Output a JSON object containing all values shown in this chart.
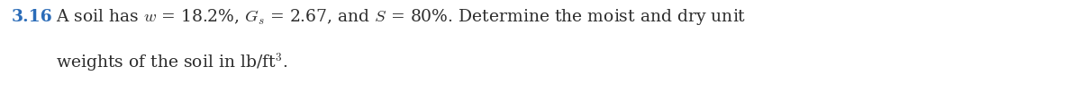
{
  "problem_number": "3.16",
  "problem_number_color": "#2b6cb8",
  "line1_text": "A soil has $w$ = 18.2%, $G_s$ = 2.67, and $S$ = 80%. Determine the moist and dry unit",
  "line2_text": "weights of the soil in lb/ft$^3$.",
  "font_size": 13.5,
  "background_color": "#ffffff",
  "text_color": "#2d2d2d",
  "fig_width": 12.0,
  "fig_height": 1.03,
  "dpi": 100
}
